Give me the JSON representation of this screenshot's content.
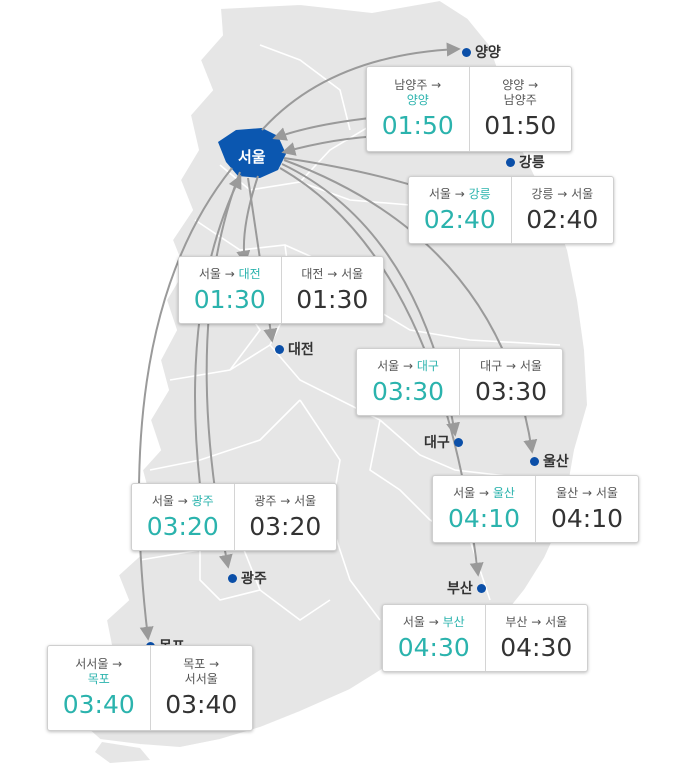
{
  "map": {
    "origin": "서울",
    "colors": {
      "seoul_fill": "#0b57b0",
      "accent": "#2bb3ad",
      "land": "#e6e6e6",
      "dot": "#0b4fa8"
    },
    "cities": [
      {
        "id": "yangyang",
        "name": "양양"
      },
      {
        "id": "gangneung",
        "name": "강릉"
      },
      {
        "id": "daejeon",
        "name": "대전"
      },
      {
        "id": "daegu",
        "name": "대구"
      },
      {
        "id": "ulsan",
        "name": "울산"
      },
      {
        "id": "gwangju",
        "name": "광주"
      },
      {
        "id": "busan",
        "name": "부산"
      },
      {
        "id": "mokpo",
        "name": "목포"
      }
    ],
    "cards": [
      {
        "id": "yangyang",
        "out_from": "남양주 →",
        "out_to": "양양",
        "out_time": "01:50",
        "ret_from": "양양 →",
        "ret_to": "남양주",
        "ret_time": "01:50"
      },
      {
        "id": "gangneung",
        "out_from": "서울 → ",
        "out_to": "강릉",
        "out_time": "02:40",
        "ret_from": "강릉 → 서울",
        "ret_time": "02:40"
      },
      {
        "id": "daejeon",
        "out_from": "서울 → ",
        "out_to": "대전",
        "out_time": "01:30",
        "ret_from": "대전 → 서울",
        "ret_time": "01:30"
      },
      {
        "id": "daegu",
        "out_from": "서울 → ",
        "out_to": "대구",
        "out_time": "03:30",
        "ret_from": "대구 → 서울",
        "ret_time": "03:30"
      },
      {
        "id": "ulsan",
        "out_from": "서울 → ",
        "out_to": "울산",
        "out_time": "04:10",
        "ret_from": "울산 → 서울",
        "ret_time": "04:10"
      },
      {
        "id": "gwangju",
        "out_from": "서울 → ",
        "out_to": "광주",
        "out_time": "03:20",
        "ret_from": "광주 → 서울",
        "ret_time": "03:20"
      },
      {
        "id": "busan",
        "out_from": "서울 → ",
        "out_to": "부산",
        "out_time": "04:30",
        "ret_from": "부산 → 서울",
        "ret_time": "04:30"
      },
      {
        "id": "mokpo",
        "out_from": "서서울 →",
        "out_to": "목포",
        "out_time": "03:40",
        "ret_from": "목포 →",
        "ret_to": "서서울",
        "ret_time": "03:40"
      }
    ]
  }
}
